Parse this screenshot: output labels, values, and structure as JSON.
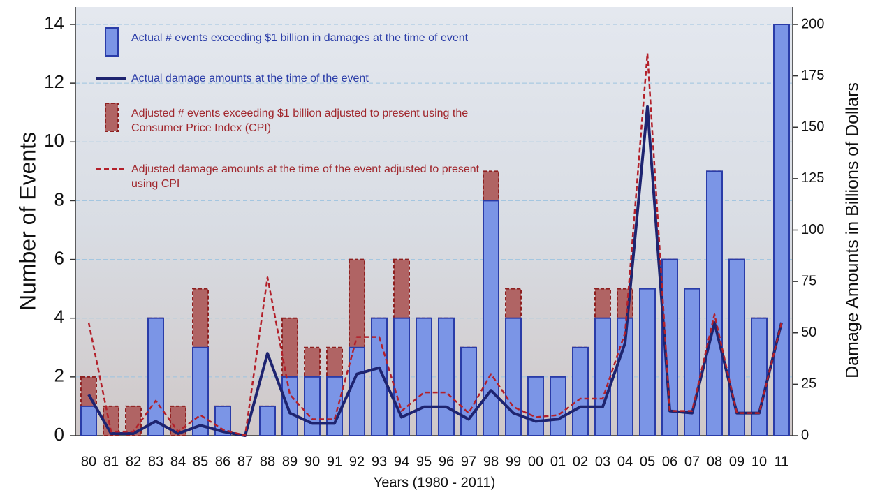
{
  "chart_data": {
    "type": "combo",
    "categories": [
      "80",
      "81",
      "82",
      "83",
      "84",
      "85",
      "86",
      "87",
      "88",
      "89",
      "90",
      "91",
      "92",
      "93",
      "94",
      "95",
      "96",
      "97",
      "98",
      "99",
      "00",
      "01",
      "02",
      "03",
      "04",
      "05",
      "06",
      "07",
      "08",
      "09",
      "10",
      "11"
    ],
    "x_label": "Years (1980 - 2011)",
    "y_label": "Number of Events",
    "y2_label": "Damage Amounts in Billions of Dollars",
    "ylim": [
      0,
      14
    ],
    "yticks": [
      0,
      2,
      4,
      6,
      8,
      10,
      12,
      14
    ],
    "y2lim": [
      0,
      200
    ],
    "y2ticks": [
      0,
      25,
      50,
      75,
      100,
      125,
      150,
      175,
      200
    ],
    "grid": true,
    "series": [
      {
        "name": "Adjusted # events exceeding $1 billion adjusted to present using the Consumer Price Index (CPI)",
        "type": "bar",
        "dashed": true,
        "color": "#b06464",
        "values": [
          2,
          1,
          1,
          4,
          1,
          5,
          1,
          0,
          1,
          4,
          3,
          3,
          6,
          4,
          6,
          4,
          4,
          3,
          9,
          5,
          2,
          2,
          3,
          5,
          5,
          5,
          6,
          5,
          9,
          6,
          4,
          14
        ]
      },
      {
        "name": "Actual # events exceeding $1 billion in damages at the time of event",
        "type": "bar",
        "dashed": false,
        "color": "#7b95e6",
        "values": [
          1,
          0,
          0,
          4,
          0,
          3,
          1,
          0,
          1,
          2,
          2,
          2,
          3,
          4,
          4,
          4,
          4,
          3,
          8,
          4,
          2,
          2,
          3,
          4,
          4,
          5,
          6,
          5,
          9,
          6,
          4,
          14
        ]
      },
      {
        "name": "Actual damage amounts at the time of the event",
        "type": "line",
        "dashed": false,
        "axis": "y2",
        "color": "#1e2470",
        "values": [
          20,
          1,
          1,
          7,
          1,
          5,
          2,
          0,
          40,
          11,
          6,
          6,
          30,
          33,
          9,
          14,
          14,
          8,
          22,
          11,
          7,
          8,
          14,
          14,
          45,
          160,
          12,
          11,
          55,
          11,
          11,
          55
        ]
      },
      {
        "name": "Adjusted damage amounts at the time of the event adjusted to present using CPI",
        "type": "line",
        "dashed": true,
        "axis": "y2",
        "color": "#b3202a",
        "values": [
          55,
          2,
          2,
          17,
          2,
          10,
          3,
          0,
          77,
          20,
          8,
          8,
          48,
          48,
          12,
          21,
          21,
          11,
          30,
          14,
          9,
          10,
          18,
          18,
          50,
          186,
          12,
          12,
          59,
          11,
          11,
          55
        ]
      }
    ]
  }
}
